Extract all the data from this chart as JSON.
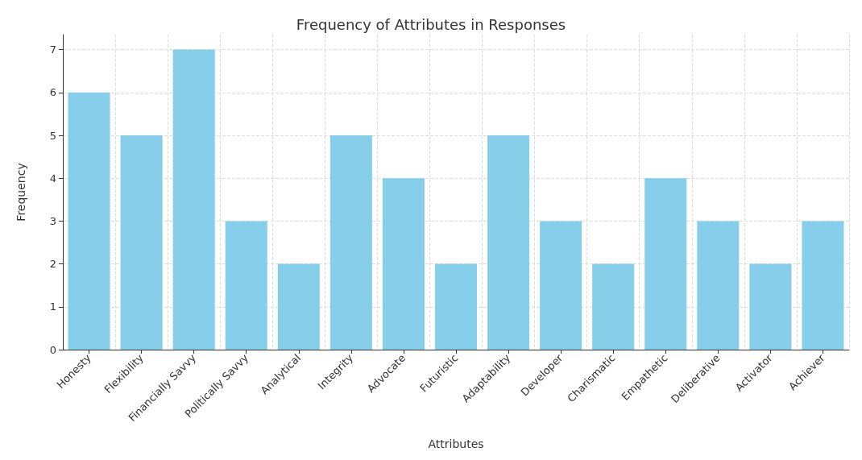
{
  "chart_data": {
    "type": "bar",
    "title": "Frequency of Attributes in Responses",
    "xlabel": "Attributes",
    "ylabel": "Frequency",
    "categories": [
      "Honesty",
      "Flexibility",
      "Financially Savvy",
      "Politically Savvy",
      "Analytical",
      "Integrity",
      "Advocate",
      "Futuristic",
      "Adaptability",
      "Developer",
      "Charismatic",
      "Empathetic",
      "Deliberative",
      "Activator",
      "Achiever"
    ],
    "values": [
      6,
      5,
      7,
      3,
      2,
      5,
      4,
      2,
      5,
      3,
      2,
      4,
      3,
      2,
      3
    ],
    "color": "#87ceeb",
    "ylim": [
      0,
      7.35
    ],
    "yticks": [
      0,
      1,
      2,
      3,
      4,
      5,
      6,
      7
    ],
    "grid": true
  }
}
